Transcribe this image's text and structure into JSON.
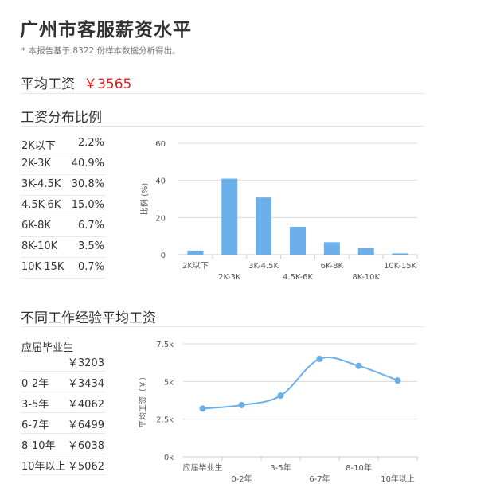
{
  "page": {
    "title": "广州市客服薪资水平",
    "note": "* 本报告基于 8322 份样本数据分析得出。",
    "avg_label": "平均工资",
    "avg_value": "￥3565"
  },
  "sections": {
    "dist_title": "工资分布比例",
    "exp_title": "不同工作经验平均工资"
  },
  "distribution_table": [
    {
      "label": "2K以下",
      "value": "2.2%"
    },
    {
      "label": "2K-3K",
      "value": "40.9%"
    },
    {
      "label": "3K-4.5K",
      "value": "30.8%"
    },
    {
      "label": "4.5K-6K",
      "value": "15.0%"
    },
    {
      "label": "6K-8K",
      "value": "6.7%"
    },
    {
      "label": "8K-10K",
      "value": "3.5%"
    },
    {
      "label": "10K-15K",
      "value": "0.7%"
    }
  ],
  "experience_table": [
    {
      "label": "应届毕业生",
      "value": "￥3203"
    },
    {
      "label": "0-2年",
      "value": "￥3434"
    },
    {
      "label": "3-5年",
      "value": "￥4062"
    },
    {
      "label": "6-7年",
      "value": "￥6499"
    },
    {
      "label": "8-10年",
      "value": "￥6038"
    },
    {
      "label": "10年以上",
      "value": "￥5062"
    }
  ],
  "colors": {
    "accent": "#6aaeea",
    "price": "#e02020",
    "grid": "#d9d9d9"
  },
  "chart_data": [
    {
      "type": "bar",
      "categories": [
        "2K以下",
        "2K-3K",
        "3K-4.5K",
        "4.5K-6K",
        "6K-8K",
        "8K-10K",
        "10K-15K"
      ],
      "values": [
        2.2,
        40.9,
        30.8,
        15.0,
        6.7,
        3.5,
        0.7
      ],
      "ylabel": "比例 (%)",
      "yticks": [
        "0",
        "20",
        "40",
        "60"
      ],
      "ylim": [
        0,
        60
      ],
      "grid": true
    },
    {
      "type": "line",
      "categories": [
        "应届毕业生",
        "0-2年",
        "3-5年",
        "6-7年",
        "8-10年",
        "10年以上"
      ],
      "values": [
        3203,
        3434,
        4062,
        6499,
        6038,
        5062
      ],
      "ylabel": "平均工资（￥）",
      "yticks": [
        "0k",
        "2.5k",
        "5k",
        "7.5k"
      ],
      "ylim": [
        0,
        7500
      ],
      "grid": true,
      "smooth": true
    }
  ]
}
